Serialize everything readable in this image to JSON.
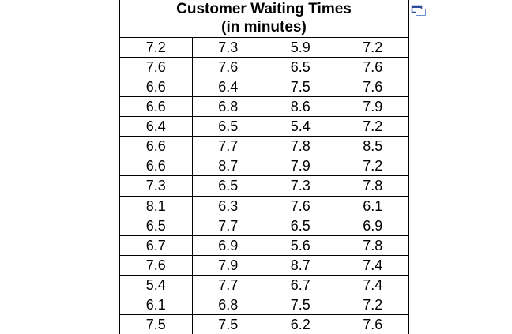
{
  "table": {
    "title": "Customer Waiting Times",
    "subtitle": "(in minutes)",
    "rows": [
      [
        7.2,
        7.3,
        5.9,
        7.2
      ],
      [
        7.6,
        7.6,
        6.5,
        7.6
      ],
      [
        6.6,
        6.4,
        7.5,
        7.6
      ],
      [
        6.6,
        6.8,
        8.6,
        7.9
      ],
      [
        6.4,
        6.5,
        5.4,
        7.2
      ],
      [
        6.6,
        7.7,
        7.8,
        8.5
      ],
      [
        6.6,
        8.7,
        7.9,
        7.2
      ],
      [
        7.3,
        6.5,
        7.3,
        7.8
      ],
      [
        8.1,
        6.3,
        7.6,
        6.1
      ],
      [
        6.5,
        7.7,
        6.5,
        6.9
      ],
      [
        6.7,
        6.9,
        5.6,
        7.8
      ],
      [
        7.6,
        7.9,
        8.7,
        7.4
      ],
      [
        5.4,
        7.7,
        6.7,
        7.4
      ],
      [
        6.1,
        6.8,
        7.5,
        7.2
      ],
      [
        7.5,
        7.5,
        6.2,
        7.6
      ]
    ]
  }
}
